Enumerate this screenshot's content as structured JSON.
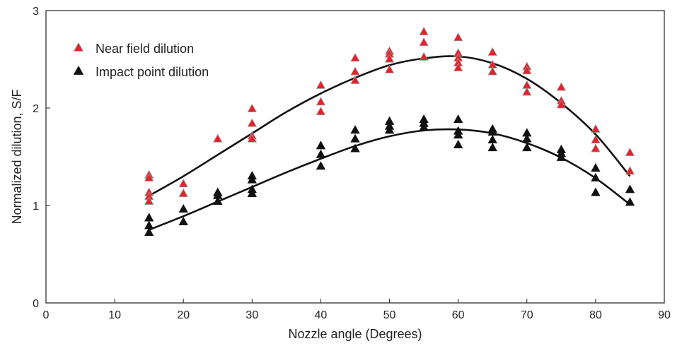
{
  "chart_data": {
    "type": "scatter",
    "title": "",
    "xlabel": "Nozzle angle (Degrees)",
    "ylabel": "Normalized dilution, S/F",
    "xlim": [
      0,
      90
    ],
    "ylim": [
      0,
      3
    ],
    "xticks": [
      0,
      10,
      20,
      30,
      40,
      50,
      60,
      70,
      80,
      90
    ],
    "yticks": [
      0,
      1,
      2,
      3
    ],
    "grid": false,
    "legend_position": "top-left",
    "series": [
      {
        "name": "Near field dilution",
        "marker": "triangle",
        "color": "#e8202a",
        "edge_color": "#999999",
        "points": [
          [
            15,
            1.31
          ],
          [
            15,
            1.28
          ],
          [
            15,
            1.13
          ],
          [
            15,
            1.09
          ],
          [
            15,
            1.04
          ],
          [
            20,
            1.22
          ],
          [
            20,
            1.12
          ],
          [
            25,
            1.68
          ],
          [
            30,
            1.99
          ],
          [
            30,
            1.84
          ],
          [
            30,
            1.71
          ],
          [
            30,
            1.68
          ],
          [
            40,
            2.23
          ],
          [
            40,
            2.06
          ],
          [
            40,
            1.96
          ],
          [
            45,
            2.51
          ],
          [
            45,
            2.37
          ],
          [
            45,
            2.28
          ],
          [
            50,
            2.58
          ],
          [
            50,
            2.55
          ],
          [
            50,
            2.5
          ],
          [
            50,
            2.39
          ],
          [
            55,
            2.78
          ],
          [
            55,
            2.67
          ],
          [
            55,
            2.52
          ],
          [
            60,
            2.72
          ],
          [
            60,
            2.56
          ],
          [
            60,
            2.51
          ],
          [
            60,
            2.46
          ],
          [
            60,
            2.41
          ],
          [
            65,
            2.57
          ],
          [
            65,
            2.44
          ],
          [
            65,
            2.37
          ],
          [
            70,
            2.42
          ],
          [
            70,
            2.38
          ],
          [
            70,
            2.23
          ],
          [
            70,
            2.16
          ],
          [
            75,
            2.21
          ],
          [
            75,
            2.07
          ],
          [
            75,
            2.03
          ],
          [
            80,
            1.78
          ],
          [
            80,
            1.67
          ],
          [
            80,
            1.58
          ],
          [
            85,
            1.54
          ],
          [
            85,
            1.35
          ]
        ],
        "fit_curve": [
          [
            15,
            1.1
          ],
          [
            20,
            1.3
          ],
          [
            25,
            1.52
          ],
          [
            30,
            1.74
          ],
          [
            35,
            1.96
          ],
          [
            40,
            2.15
          ],
          [
            45,
            2.31
          ],
          [
            50,
            2.44
          ],
          [
            55,
            2.51
          ],
          [
            60,
            2.53
          ],
          [
            65,
            2.46
          ],
          [
            70,
            2.3
          ],
          [
            75,
            2.05
          ],
          [
            80,
            1.73
          ],
          [
            85,
            1.3
          ]
        ]
      },
      {
        "name": "Impact point dilution",
        "marker": "triangle",
        "color": "#111111",
        "edge_color": "#111111",
        "points": [
          [
            15,
            0.87
          ],
          [
            15,
            0.79
          ],
          [
            15,
            0.72
          ],
          [
            20,
            0.96
          ],
          [
            20,
            0.83
          ],
          [
            25,
            1.13
          ],
          [
            25,
            1.1
          ],
          [
            25,
            1.04
          ],
          [
            30,
            1.3
          ],
          [
            30,
            1.26
          ],
          [
            30,
            1.16
          ],
          [
            30,
            1.12
          ],
          [
            40,
            1.61
          ],
          [
            40,
            1.52
          ],
          [
            40,
            1.4
          ],
          [
            45,
            1.77
          ],
          [
            45,
            1.68
          ],
          [
            45,
            1.58
          ],
          [
            50,
            1.86
          ],
          [
            50,
            1.81
          ],
          [
            50,
            1.77
          ],
          [
            55,
            1.88
          ],
          [
            55,
            1.84
          ],
          [
            55,
            1.8
          ],
          [
            60,
            1.88
          ],
          [
            60,
            1.76
          ],
          [
            60,
            1.72
          ],
          [
            60,
            1.62
          ],
          [
            65,
            1.78
          ],
          [
            65,
            1.75
          ],
          [
            65,
            1.67
          ],
          [
            65,
            1.59
          ],
          [
            70,
            1.74
          ],
          [
            70,
            1.68
          ],
          [
            70,
            1.59
          ],
          [
            75,
            1.57
          ],
          [
            75,
            1.53
          ],
          [
            75,
            1.49
          ],
          [
            80,
            1.38
          ],
          [
            80,
            1.28
          ],
          [
            80,
            1.13
          ],
          [
            85,
            1.16
          ],
          [
            85,
            1.03
          ]
        ],
        "fit_curve": [
          [
            15,
            0.75
          ],
          [
            20,
            0.89
          ],
          [
            25,
            1.04
          ],
          [
            30,
            1.19
          ],
          [
            35,
            1.34
          ],
          [
            40,
            1.48
          ],
          [
            45,
            1.61
          ],
          [
            50,
            1.71
          ],
          [
            55,
            1.77
          ],
          [
            60,
            1.78
          ],
          [
            65,
            1.74
          ],
          [
            70,
            1.64
          ],
          [
            75,
            1.49
          ],
          [
            80,
            1.28
          ],
          [
            85,
            1.01
          ]
        ]
      }
    ]
  }
}
